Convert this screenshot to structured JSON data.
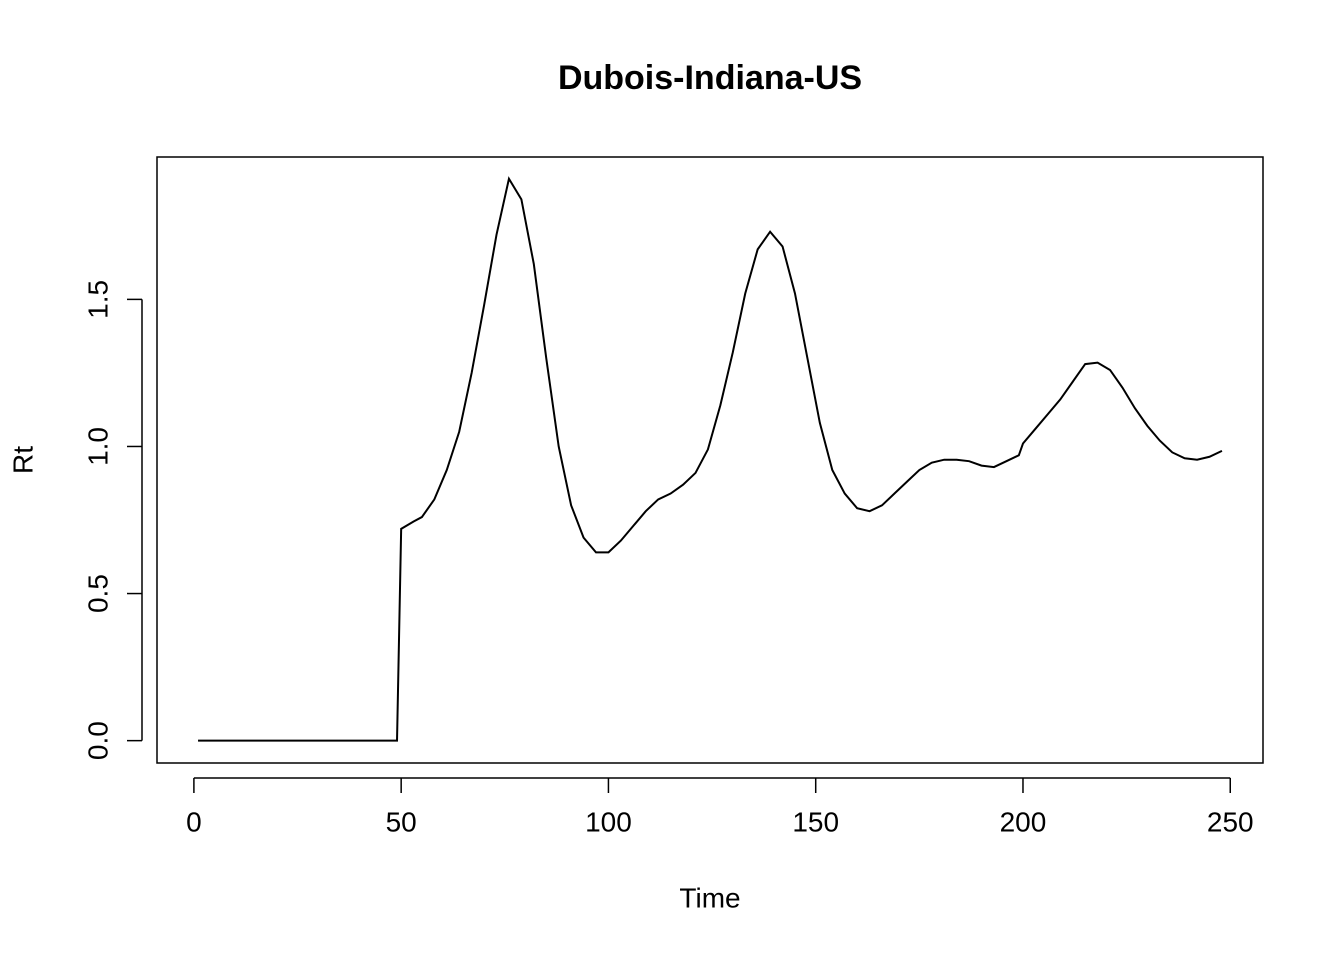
{
  "chart_data": {
    "type": "line",
    "title": "Dubois-Indiana-US",
    "x_label": "Time",
    "y_label": "Rt",
    "x": [
      1,
      49,
      50,
      53,
      55,
      58,
      61,
      64,
      67,
      70,
      73,
      76,
      79,
      82,
      85,
      88,
      91,
      94,
      97,
      100,
      103,
      106,
      109,
      112,
      115,
      118,
      121,
      124,
      127,
      130,
      133,
      136,
      139,
      142,
      145,
      148,
      151,
      154,
      157,
      160,
      163,
      166,
      169,
      172,
      175,
      178,
      181,
      184,
      187,
      190,
      193,
      196,
      199,
      200,
      203,
      206,
      209,
      212,
      215,
      218,
      221,
      224,
      227,
      230,
      233,
      236,
      239,
      242,
      245,
      248
    ],
    "series": [
      {
        "color": "#000000",
        "values": [
          0,
          0,
          0.72,
          0.745,
          0.76,
          0.82,
          0.92,
          1.05,
          1.25,
          1.48,
          1.72,
          1.91,
          1.84,
          1.62,
          1.3,
          1.0,
          0.8,
          0.69,
          0.64,
          0.64,
          0.68,
          0.73,
          0.78,
          0.82,
          0.84,
          0.87,
          0.91,
          0.99,
          1.14,
          1.32,
          1.52,
          1.67,
          1.73,
          1.68,
          1.52,
          1.3,
          1.08,
          0.92,
          0.84,
          0.79,
          0.78,
          0.8,
          0.84,
          0.88,
          0.92,
          0.945,
          0.955,
          0.955,
          0.95,
          0.935,
          0.93,
          0.95,
          0.97,
          1.01,
          1.06,
          1.11,
          1.16,
          1.22,
          1.28,
          1.285,
          1.26,
          1.2,
          1.13,
          1.07,
          1.02,
          0.98,
          0.96,
          0.955,
          0.965,
          0.985
        ]
      }
    ],
    "xlim": [
      -8.9,
      257.9
    ],
    "ylim": [
      -0.076,
      1.984
    ],
    "xticks": [
      0,
      50,
      100,
      150,
      200,
      250
    ],
    "yticks": [
      {
        "value": 0,
        "label": "0.0"
      },
      {
        "value": 0.5,
        "label": "0.5"
      },
      {
        "value": 1,
        "label": "1.0"
      },
      {
        "value": 1.5,
        "label": "1.5"
      }
    ]
  }
}
